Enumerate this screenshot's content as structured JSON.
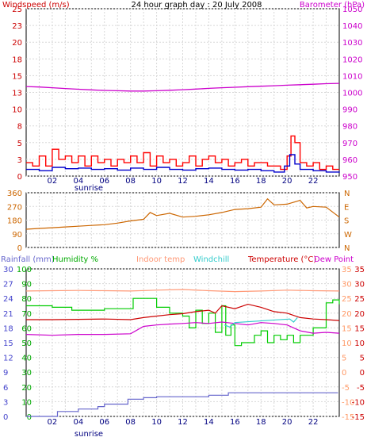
{
  "title": "24 hour graph day : 20 July 2008",
  "chart_data": [
    {
      "type": "line",
      "title": "24 hour graph day : 20 July 2008",
      "left_axis": {
        "label": "Windspeed (m/s)",
        "ticks": [
          "0",
          "3",
          "5",
          "8",
          "10",
          "13",
          "15",
          "18",
          "20",
          "23",
          "25"
        ],
        "range": [
          0,
          25
        ],
        "color": "#cc0000"
      },
      "right_axis": {
        "label": "Barometer (hPa)",
        "ticks": [
          "950",
          "960",
          "970",
          "980",
          "990",
          "1000",
          "1010",
          "1020",
          "1030",
          "1040",
          "1050"
        ],
        "range": [
          950,
          1050
        ],
        "color": "#cc00cc"
      },
      "x_ticks": [
        "02",
        "04",
        "06",
        "08",
        "10",
        "12",
        "14",
        "16",
        "18",
        "20",
        "22"
      ],
      "x_range": [
        0,
        24
      ],
      "sub_label": "sunrise",
      "sub_label_hour": 4.8,
      "grid": true,
      "series": [
        {
          "name": "Barometer (hPa)",
          "axis": "right",
          "color": "#cc00cc",
          "x": [
            0,
            1,
            2,
            3,
            4,
            5,
            6,
            7,
            8,
            9,
            10,
            11,
            12,
            13,
            14,
            15,
            16,
            17,
            18,
            19,
            20,
            21,
            22,
            23,
            24
          ],
          "y": [
            1003.5,
            1003.2,
            1002.8,
            1002.3,
            1001.9,
            1001.5,
            1001.2,
            1001.0,
            1000.8,
            1000.8,
            1001.0,
            1001.3,
            1001.6,
            1002.0,
            1002.4,
            1002.8,
            1003.1,
            1003.4,
            1003.7,
            1004.0,
            1004.3,
            1004.6,
            1004.9,
            1005.2,
            1005.4
          ]
        },
        {
          "name": "Wind gust",
          "axis": "left",
          "color": "#ff0000",
          "x": [
            0,
            0.5,
            1,
            1.5,
            2,
            2.5,
            3,
            3.5,
            4,
            4.5,
            5,
            5.5,
            6,
            6.5,
            7,
            7.5,
            8,
            8.5,
            9,
            9.5,
            10,
            10.5,
            11,
            11.5,
            12,
            12.5,
            13,
            13.5,
            14,
            14.5,
            15,
            15.5,
            16,
            16.5,
            17,
            17.5,
            18,
            18.5,
            19,
            19.5,
            20,
            20.3,
            20.6,
            21,
            21.5,
            22,
            22.5,
            23,
            23.5,
            24
          ],
          "y": [
            2,
            1.5,
            3,
            1.5,
            4,
            2.5,
            3,
            2,
            3,
            1.5,
            3,
            2,
            2.5,
            1.5,
            2.5,
            2,
            3,
            2,
            3.5,
            1.5,
            3,
            2,
            2.5,
            1.5,
            2,
            3,
            1.5,
            2.5,
            3,
            2,
            2.5,
            1.5,
            2,
            2.5,
            1.5,
            2,
            2,
            1.5,
            1.5,
            1,
            3,
            6,
            5,
            2,
            1.5,
            2,
            1,
            1.5,
            1,
            1
          ]
        },
        {
          "name": "Windspeed (m/s)",
          "axis": "left",
          "color": "#0000cc",
          "x": [
            0,
            1,
            2,
            3,
            4,
            5,
            6,
            7,
            8,
            9,
            10,
            11,
            12,
            13,
            14,
            15,
            16,
            17,
            18,
            19,
            19.8,
            20.2,
            20.6,
            21,
            22,
            23,
            24
          ],
          "y": [
            1,
            0.8,
            1.3,
            1.1,
            1.2,
            1,
            1.1,
            0.9,
            1.2,
            1,
            1.3,
            1,
            0.9,
            1.1,
            1.2,
            1,
            0.9,
            1,
            0.8,
            0.6,
            1.5,
            3.2,
            1.8,
            1,
            0.8,
            0.6,
            0.5
          ]
        }
      ]
    },
    {
      "type": "line",
      "left_axis": {
        "ticks": [
          "0",
          "90",
          "180",
          "270",
          "360"
        ],
        "range": [
          0,
          360
        ]
      },
      "right_axis": {
        "ticks": [
          "N",
          "W",
          "S",
          "E",
          "N"
        ]
      },
      "x_ticks": [
        "02",
        "04",
        "06",
        "08",
        "10",
        "12",
        "14",
        "16",
        "18",
        "20",
        "22"
      ],
      "x_range": [
        0,
        24
      ],
      "grid": true,
      "series": [
        {
          "name": "Wind direction",
          "color": "#cc6600",
          "x": [
            0,
            1,
            2,
            3,
            4,
            5,
            6,
            7,
            8,
            9,
            9.5,
            10,
            11,
            12,
            13,
            14,
            15,
            16,
            17,
            18,
            18.5,
            19,
            20,
            21,
            21.5,
            22,
            23,
            24
          ],
          "y": [
            120,
            125,
            130,
            135,
            140,
            145,
            150,
            160,
            175,
            185,
            230,
            210,
            225,
            200,
            205,
            215,
            230,
            250,
            255,
            265,
            320,
            280,
            285,
            310,
            260,
            270,
            265,
            200
          ]
        }
      ]
    },
    {
      "type": "line",
      "labels": {
        "rainfall": "Rainfall (mm)",
        "humidity": "Humidity %",
        "indoor": "Indoor temp",
        "windchill": "Windchill",
        "temperature": "Temperature (°C)",
        "dewpoint": "Dew Point"
      },
      "rain_axis": {
        "ticks": [
          "0",
          "3",
          "6",
          "9",
          "12",
          "15",
          "18",
          "21",
          "24",
          "27",
          "30"
        ],
        "range": [
          0,
          30
        ],
        "color": "#4444cc"
      },
      "humidity_axis": {
        "ticks": [
          "0",
          "10",
          "20",
          "30",
          "40",
          "50",
          "60",
          "70",
          "80",
          "90",
          "100"
        ],
        "range": [
          0,
          100
        ],
        "color": "#00aa00"
      },
      "temp_axis_right": {
        "ticks": [
          "-15",
          "-10",
          "-5",
          "0",
          "5",
          "10",
          "15",
          "20",
          "25",
          "30",
          "35"
        ],
        "range": [
          -15,
          35
        ],
        "color": "#cc0000"
      },
      "temp_axis_inner": {
        "ticks": [
          "-15",
          "-10",
          "-5",
          "0",
          "5",
          "10",
          "15",
          "20",
          "25",
          "30",
          "35"
        ],
        "color": "#ff9966"
      },
      "x_ticks": [
        "02",
        "04",
        "06",
        "08",
        "10",
        "12",
        "14",
        "16",
        "18",
        "20",
        "22"
      ],
      "x_range": [
        0,
        24
      ],
      "sub_label": "sunrise",
      "sub_label_hour": 4.8,
      "grid": true,
      "series": [
        {
          "name": "Indoor temp",
          "axis": "temp",
          "color": "#ff9977",
          "x": [
            0,
            2,
            4,
            6,
            8,
            10,
            12,
            14,
            16,
            18,
            20,
            22,
            24
          ],
          "y": [
            27.5,
            27.6,
            27.7,
            27.6,
            27.5,
            27.8,
            28,
            27.6,
            27.3,
            27.5,
            27.8,
            27.6,
            27.5
          ]
        },
        {
          "name": "Humidity %",
          "axis": "humidity",
          "color": "#00cc00",
          "x": [
            0,
            2,
            3.5,
            6,
            7.8,
            8.2,
            9.5,
            10,
            11,
            12,
            12.5,
            13,
            13.5,
            14,
            14.5,
            15,
            15.3,
            15.7,
            16,
            16.5,
            17,
            17.5,
            18,
            18.5,
            19,
            19.5,
            20,
            20.5,
            21,
            22,
            23,
            23.5,
            24
          ],
          "y": [
            75,
            74,
            72,
            73,
            73,
            80,
            80,
            74,
            70,
            68,
            60,
            72,
            63,
            70,
            57,
            75,
            55,
            62,
            48,
            50,
            50,
            55,
            58,
            50,
            55,
            52,
            55,
            50,
            55,
            60,
            77,
            79,
            76
          ]
        },
        {
          "name": "Temperature (°C)",
          "axis": "temp",
          "color": "#cc0000",
          "x": [
            0,
            2,
            4,
            6,
            8,
            9,
            10,
            11,
            12,
            13,
            14,
            14.5,
            15,
            16,
            17,
            18,
            19,
            20,
            21,
            22,
            23,
            24
          ],
          "y": [
            17.8,
            17.8,
            17.9,
            18,
            17.8,
            18.5,
            19,
            19.5,
            19.8,
            20.5,
            21,
            20,
            22.5,
            21.5,
            23,
            22,
            20.5,
            20,
            18.5,
            18,
            17.8,
            17.5
          ]
        },
        {
          "name": "Dew Point",
          "axis": "temp",
          "color": "#cc00cc",
          "x": [
            0,
            2,
            4,
            6,
            8,
            9,
            10,
            11,
            12,
            13,
            14,
            15,
            16,
            17,
            18,
            19,
            20,
            21,
            22,
            23,
            24
          ],
          "y": [
            12.8,
            12.5,
            12.8,
            12.8,
            13,
            15.5,
            16,
            16.3,
            16.5,
            16.8,
            16.5,
            17,
            16.5,
            16,
            16.8,
            16.5,
            16,
            14,
            13.2,
            13.5,
            13.2
          ]
        },
        {
          "name": "Windchill",
          "axis": "temp",
          "color": "#33cccc",
          "x": [
            15.2,
            15.6,
            16,
            20.2,
            20.5,
            20.8
          ],
          "y": [
            16,
            15.3,
            16.8,
            18,
            17,
            18.5
          ]
        },
        {
          "name": "Rainfall (mm)",
          "axis": "rain",
          "color": "#6666cc",
          "x": [
            0,
            2.2,
            2.4,
            4,
            5.5,
            6,
            7.8,
            8.2,
            9,
            10,
            12,
            14,
            15,
            15.5,
            16,
            18,
            20,
            22,
            23.9
          ],
          "y": [
            0,
            0,
            1,
            1.5,
            2,
            2.5,
            3.5,
            3.5,
            3.8,
            4,
            4,
            4.3,
            4.3,
            4.8,
            4.8,
            4.8,
            4.8,
            4.8,
            4.8
          ]
        }
      ]
    }
  ]
}
